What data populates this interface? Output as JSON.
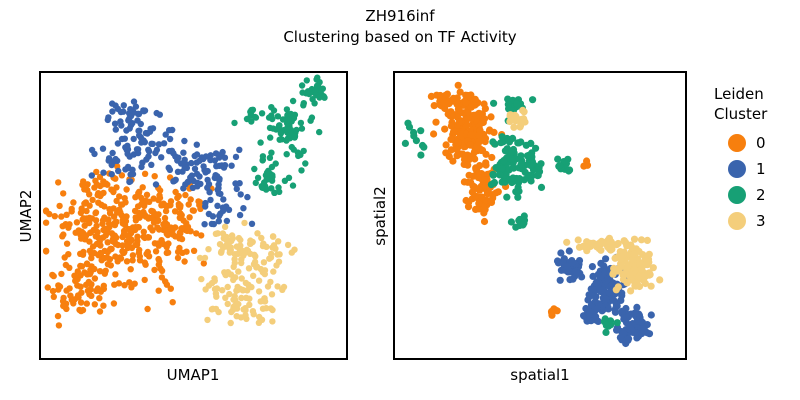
{
  "title": "ZH916inf",
  "subtitle": "Clustering based on TF Activity",
  "colors": {
    "0": "#f77f0e",
    "1": "#3a64ad",
    "2": "#17a075",
    "3": "#f4ce7b"
  },
  "legend": {
    "title_line1": "Leiden",
    "title_line2": "Cluster",
    "entries": [
      "0",
      "1",
      "2",
      "3"
    ]
  },
  "chart_data": [
    {
      "type": "scatter",
      "xlabel": "UMAP1",
      "ylabel": "UMAP2",
      "xlim": [
        0,
        100
      ],
      "ylim": [
        0,
        100
      ],
      "grid": false,
      "series": [
        {
          "name": "0",
          "regions": [
            [
              18,
              45,
              14,
              12,
              120
            ],
            [
              30,
              38,
              14,
              14,
              110
            ],
            [
              38,
              48,
              12,
              12,
              90
            ],
            [
              12,
              22,
              8,
              9,
              60
            ],
            [
              45,
              50,
              8,
              8,
              40
            ],
            [
              20,
              60,
              8,
              6,
              30
            ]
          ]
        },
        {
          "name": "1",
          "regions": [
            [
              35,
              72,
              12,
              10,
              90
            ],
            [
              55,
              65,
              10,
              8,
              60
            ],
            [
              30,
              85,
              8,
              4,
              30
            ],
            [
              60,
              52,
              8,
              6,
              25
            ]
          ]
        },
        {
          "name": "2",
          "regions": [
            [
              80,
              80,
              7,
              9,
              70
            ],
            [
              90,
              93,
              4,
              3,
              30
            ],
            [
              75,
              62,
              6,
              6,
              30
            ],
            [
              70,
              85,
              5,
              3,
              12
            ]
          ]
        },
        {
          "name": "3",
          "regions": [
            [
              67,
              25,
              10,
              10,
              110
            ],
            [
              62,
              40,
              8,
              5,
              40
            ],
            [
              75,
              38,
              6,
              4,
              20
            ]
          ]
        }
      ]
    },
    {
      "type": "scatter",
      "xlabel": "spatial1",
      "ylabel": "spatial2",
      "xlim": [
        0,
        100
      ],
      "ylim": [
        0,
        100
      ],
      "grid": false,
      "series": [
        {
          "name": "0",
          "regions": [
            [
              25,
              80,
              7,
              9,
              150
            ],
            [
              30,
              60,
              5,
              8,
              80
            ],
            [
              20,
              90,
              8,
              3,
              40
            ],
            [
              55,
              17,
              2,
              2,
              6
            ],
            [
              66,
              68,
              1,
              1,
              3
            ]
          ]
        },
        {
          "name": "1",
          "regions": [
            [
              73,
              25,
              5,
              8,
              90
            ],
            [
              60,
              32,
              5,
              4,
              40
            ],
            [
              82,
              12,
              5,
              5,
              60
            ],
            [
              67,
              17,
              3,
              4,
              25
            ]
          ]
        },
        {
          "name": "2",
          "regions": [
            [
              39,
              68,
              4,
              10,
              80
            ],
            [
              47,
              67,
              4,
              6,
              30
            ],
            [
              40,
              89,
              5,
              2,
              15
            ],
            [
              58,
              67,
              2,
              2,
              14
            ],
            [
              8,
              77,
              3,
              5,
              10
            ],
            [
              43,
              47,
              3,
              3,
              10
            ],
            [
              73,
              12,
              2,
              2,
              8
            ]
          ]
        },
        {
          "name": "3",
          "regions": [
            [
              82,
              32,
              5,
              6,
              120
            ],
            [
              72,
              40,
              8,
              2,
              40
            ],
            [
              42,
              84,
              3,
              3,
              18
            ]
          ]
        }
      ]
    }
  ]
}
